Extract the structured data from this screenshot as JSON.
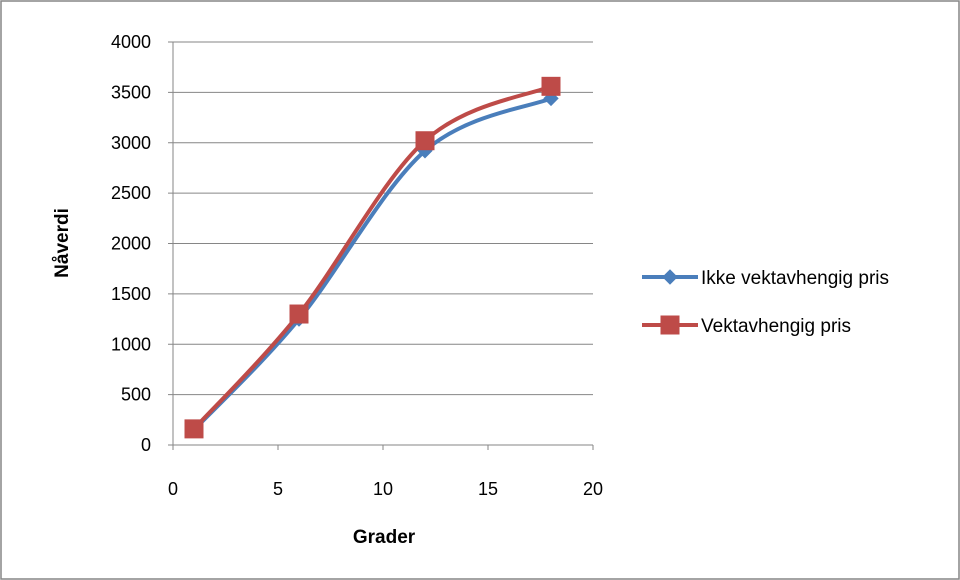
{
  "chart_data": {
    "type": "scatter",
    "smoothed": true,
    "title": "",
    "xlabel": "Grader",
    "ylabel": "Nåverdi",
    "xlim": [
      0,
      20
    ],
    "ylim": [
      0,
      4000
    ],
    "xticks": [
      0,
      5,
      10,
      15,
      20
    ],
    "yticks": [
      0,
      500,
      1000,
      1500,
      2000,
      2500,
      3000,
      3500,
      4000
    ],
    "grid": "horizontal",
    "legend_position": "right",
    "series": [
      {
        "name": "Ikke vektavhengig pris",
        "color": "#4a7ebb",
        "marker": "diamond",
        "x": [
          1,
          6,
          12,
          18
        ],
        "y": [
          150,
          1250,
          2920,
          3440
        ]
      },
      {
        "name": "Vektavhengig pris",
        "color": "#be4b48",
        "marker": "square",
        "x": [
          1,
          6,
          12,
          18
        ],
        "y": [
          160,
          1300,
          3020,
          3560
        ]
      }
    ]
  }
}
